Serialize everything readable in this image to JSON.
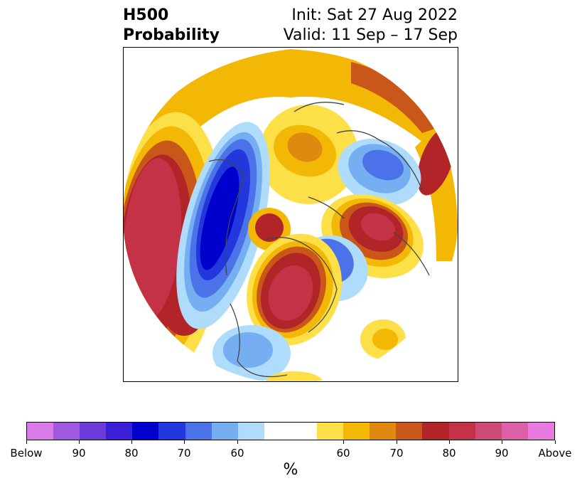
{
  "title": {
    "left_line1": "H500",
    "left_line2": "Probability",
    "right_line1": "Init: Sat 27 Aug 2022",
    "right_line2": "Valid: 11 Sep – 17 Sep"
  },
  "colorbar": {
    "colors": [
      "#d87be8",
      "#9f58e0",
      "#6a3bd8",
      "#3a1fd6",
      "#0000cc",
      "#2238dc",
      "#4b72e8",
      "#76aef2",
      "#b0dcfb",
      "#ffffff",
      "#fde047",
      "#f3b706",
      "#e08910",
      "#c95719",
      "#b12428",
      "#c43248",
      "#cd4a76",
      "#dc60a8",
      "#e97ae0"
    ],
    "tick_labels": [
      "Below",
      "90",
      "80",
      "70",
      "60",
      "60",
      "70",
      "80",
      "90",
      "Above"
    ],
    "label": "%"
  },
  "map": {
    "projection": "north-polar-stereographic",
    "colors": {
      "blue_light": "#b0dcfb",
      "blue_mid": "#76aef2",
      "blue": "#4b72e8",
      "blue_dark": "#2238dc",
      "blue_deep": "#0000cc",
      "yellow": "#fde047",
      "gold": "#f3b706",
      "orange": "#e08910",
      "red_orange": "#c95719",
      "red": "#b12428",
      "crimson": "#c43248",
      "rose": "#cd4a76",
      "coastline": "#444444"
    }
  }
}
